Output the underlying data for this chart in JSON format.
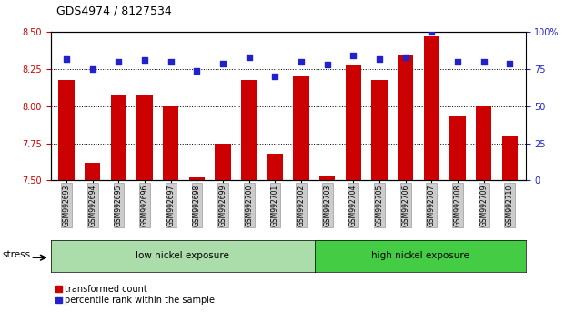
{
  "title": "GDS4974 / 8127534",
  "samples": [
    "GSM992693",
    "GSM992694",
    "GSM992695",
    "GSM992696",
    "GSM992697",
    "GSM992698",
    "GSM992699",
    "GSM992700",
    "GSM992701",
    "GSM992702",
    "GSM992703",
    "GSM992704",
    "GSM992705",
    "GSM992706",
    "GSM992707",
    "GSM992708",
    "GSM992709",
    "GSM992710"
  ],
  "red_values": [
    8.18,
    7.62,
    8.08,
    8.08,
    8.0,
    7.52,
    7.75,
    8.18,
    7.68,
    8.2,
    7.53,
    8.28,
    8.18,
    8.35,
    8.47,
    7.93,
    8.0,
    7.8
  ],
  "blue_values": [
    82,
    75,
    80,
    81,
    80,
    74,
    79,
    83,
    70,
    80,
    78,
    84,
    82,
    83,
    100,
    80,
    80,
    79
  ],
  "ylim_left": [
    7.5,
    8.5
  ],
  "ylim_right": [
    0,
    100
  ],
  "yticks_left": [
    7.5,
    7.75,
    8.0,
    8.25,
    8.5
  ],
  "yticks_right": [
    0,
    25,
    50,
    75,
    100
  ],
  "grid_lines": [
    7.75,
    8.0,
    8.25
  ],
  "group1_label": "low nickel exposure",
  "group2_label": "high nickel exposure",
  "n_group1": 10,
  "n_group2": 8,
  "stress_label": "stress",
  "legend_red": "transformed count",
  "legend_blue": "percentile rank within the sample",
  "red_color": "#cc0000",
  "blue_color": "#2222cc",
  "group1_color": "#aaddaa",
  "group2_color": "#44cc44",
  "bar_bottom": 7.5,
  "tick_label_color_left": "#cc0000",
  "tick_label_color_right": "#2222cc"
}
